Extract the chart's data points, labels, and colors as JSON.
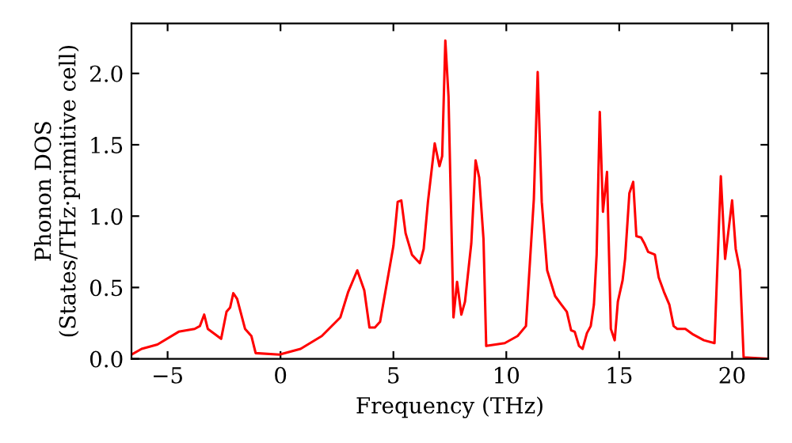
{
  "chart_data": {
    "type": "line",
    "xlabel": "Frequency (THz)",
    "ylabel": "Phonon DOS\n(States/THz·primitive cell)",
    "xlim": [
      -6.6,
      21.6
    ],
    "ylim": [
      0,
      2.35
    ],
    "xticks": [
      {
        "value": -5,
        "label": "−5"
      },
      0,
      5,
      10,
      15,
      20
    ],
    "yticks": [
      {
        "value": 0,
        "label": "0.0"
      },
      {
        "value": 0.5,
        "label": "0.5"
      },
      {
        "value": 1,
        "label": "1.0"
      },
      {
        "value": 1.5,
        "label": "1.5"
      },
      {
        "value": 2,
        "label": "2.0"
      }
    ],
    "grid": false,
    "line_style": "solid",
    "marker": "none",
    "series": [
      {
        "color": "#ff0000",
        "x": [
          -6.6,
          -6.15,
          -5.45,
          -4.51,
          -3.8,
          -3.57,
          -3.38,
          -3.22,
          -2.63,
          -2.39,
          -2.23,
          -2.09,
          -1.92,
          -1.57,
          -1.29,
          -1.1,
          -0.05,
          0.89,
          1.83,
          2.65,
          3.0,
          3.4,
          3.71,
          3.94,
          4.18,
          4.41,
          5.0,
          5.19,
          5.35,
          5.54,
          5.82,
          6.17,
          6.34,
          6.53,
          6.83,
          7.04,
          7.16,
          7.3,
          7.44,
          7.66,
          7.82,
          8.01,
          8.17,
          8.45,
          8.64,
          8.8,
          8.99,
          9.11,
          9.93,
          10.5,
          10.87,
          11.22,
          11.39,
          11.57,
          11.81,
          12.16,
          12.44,
          12.68,
          12.87,
          13.03,
          13.22,
          13.38,
          13.57,
          13.74,
          13.88,
          14.0,
          14.14,
          14.28,
          14.46,
          14.63,
          14.8,
          14.94,
          15.15,
          15.26,
          15.45,
          15.62,
          15.76,
          15.97,
          16.11,
          16.28,
          16.58,
          16.75,
          16.98,
          17.22,
          17.41,
          17.57,
          17.93,
          18.28,
          18.75,
          19.22,
          19.5,
          19.69,
          20.0,
          20.16,
          20.35,
          20.51,
          21.6
        ],
        "values": [
          0.03,
          0.07,
          0.1,
          0.19,
          0.21,
          0.23,
          0.31,
          0.21,
          0.14,
          0.33,
          0.36,
          0.46,
          0.42,
          0.21,
          0.16,
          0.04,
          0.03,
          0.07,
          0.16,
          0.29,
          0.47,
          0.62,
          0.48,
          0.22,
          0.22,
          0.26,
          0.79,
          1.1,
          1.11,
          0.88,
          0.73,
          0.67,
          0.77,
          1.1,
          1.51,
          1.35,
          1.42,
          2.23,
          1.84,
          0.29,
          0.54,
          0.31,
          0.4,
          0.81,
          1.39,
          1.27,
          0.84,
          0.09,
          0.11,
          0.16,
          0.23,
          1.12,
          2.01,
          1.1,
          0.62,
          0.44,
          0.38,
          0.33,
          0.2,
          0.19,
          0.09,
          0.07,
          0.18,
          0.23,
          0.38,
          0.73,
          1.73,
          1.03,
          1.31,
          0.21,
          0.13,
          0.4,
          0.55,
          0.7,
          1.16,
          1.24,
          0.86,
          0.85,
          0.81,
          0.75,
          0.73,
          0.57,
          0.47,
          0.38,
          0.23,
          0.21,
          0.21,
          0.17,
          0.13,
          0.11,
          1.28,
          0.7,
          1.11,
          0.77,
          0.62,
          0.01,
          0
        ]
      }
    ]
  }
}
